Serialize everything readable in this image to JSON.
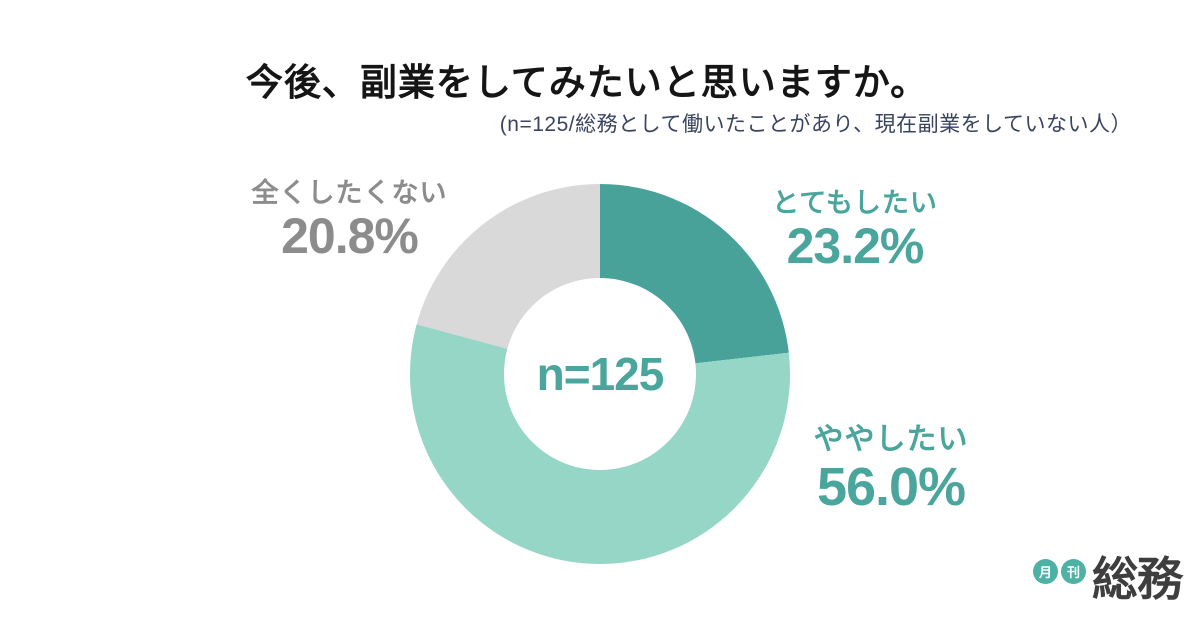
{
  "chart_data": {
    "type": "pie",
    "donut": true,
    "title": "今後、副業をしてみたいと思いますか。",
    "subtitle": "(n=125/総務として働いたことがあり、現在副業をしていない人）",
    "center_label": "n=125",
    "sample_size": 125,
    "categories": [
      "とてもしたい",
      "ややしたい",
      "全くしたくない"
    ],
    "values": [
      23.2,
      56.0,
      20.8
    ],
    "value_labels": [
      "23.2%",
      "56.0%",
      "20.8%"
    ],
    "unit": "%",
    "colors": [
      "#48A29A",
      "#95D6C7",
      "#D9D9D9"
    ],
    "label_colors": [
      "#4AA59C",
      "#4AA59C",
      "#8C8C8C"
    ],
    "start_angle_deg": 0,
    "direction": "clockwise",
    "legend_position": "around-chart"
  },
  "logo": {
    "badge1": "月",
    "badge2": "刊",
    "text": "総務",
    "badge_color": "#4EB1A5",
    "text_color": "#3E3E3E"
  },
  "colors": {
    "background": "#FFFFFF",
    "title": "#151515",
    "subtitle": "#3A4460"
  }
}
